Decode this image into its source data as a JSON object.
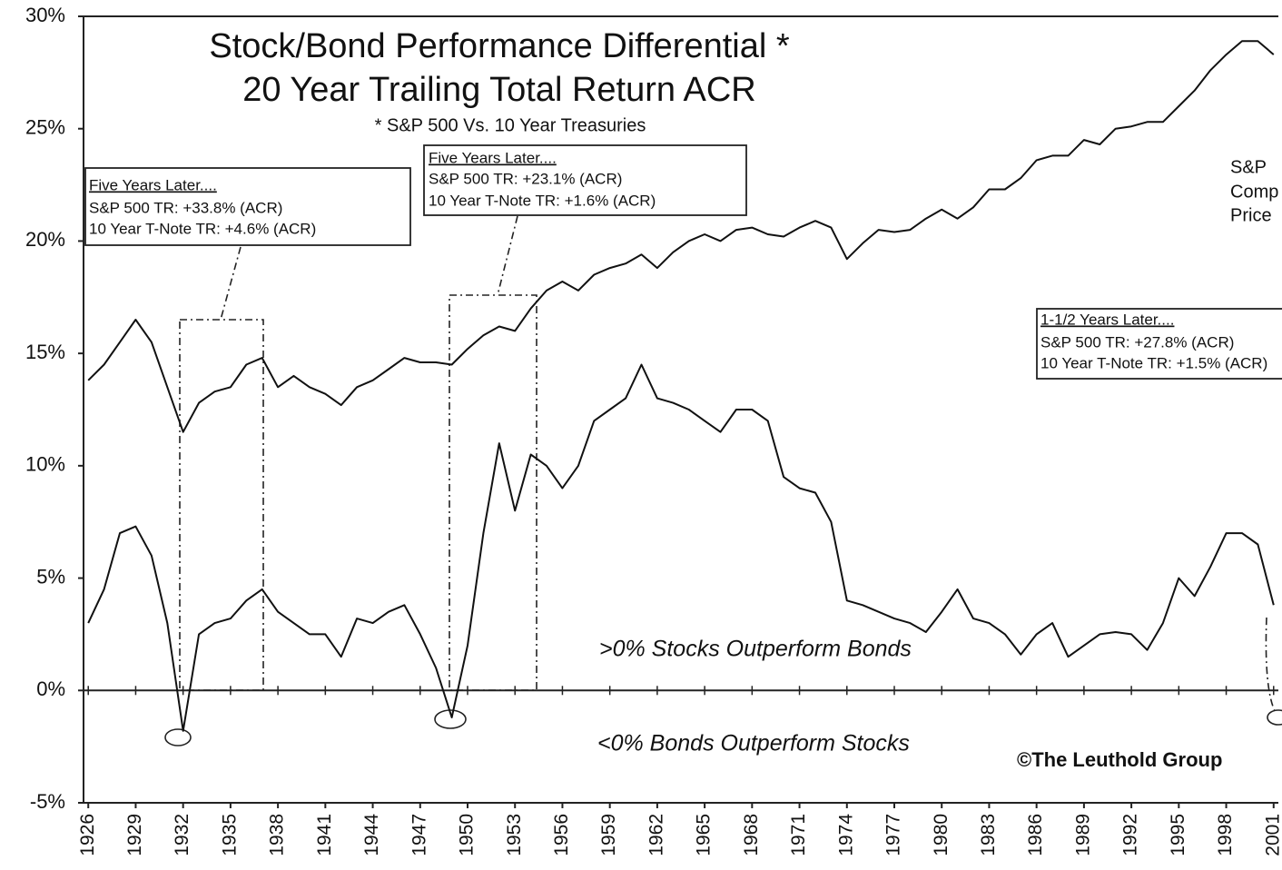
{
  "chart_data": {
    "type": "line",
    "title": "Stock/Bond Performance Differential *",
    "subtitle": "20 Year Trailing Total Return ACR",
    "note": "* S&P 500 Vs. 10 Year Treasuries",
    "x": [
      1926,
      1927,
      1928,
      1929,
      1930,
      1931,
      1932,
      1933,
      1934,
      1935,
      1936,
      1937,
      1938,
      1939,
      1940,
      1941,
      1942,
      1943,
      1944,
      1945,
      1946,
      1947,
      1948,
      1949,
      1950,
      1951,
      1952,
      1953,
      1954,
      1955,
      1956,
      1957,
      1958,
      1959,
      1960,
      1961,
      1962,
      1963,
      1964,
      1965,
      1966,
      1967,
      1968,
      1969,
      1970,
      1971,
      1972,
      1973,
      1974,
      1975,
      1976,
      1977,
      1978,
      1979,
      1980,
      1981,
      1982,
      1983,
      1984,
      1985,
      1986,
      1987,
      1988,
      1989,
      1990,
      1991,
      1992,
      1993,
      1994,
      1995,
      1996,
      1997,
      1998,
      1999,
      2000,
      2001
    ],
    "series": [
      {
        "name": "S&P Comp Price",
        "color": "#111111",
        "values": [
          13.8,
          14.5,
          15.5,
          16.5,
          15.5,
          13.5,
          11.5,
          12.8,
          13.3,
          13.5,
          14.5,
          14.8,
          13.5,
          14.0,
          13.5,
          13.2,
          12.7,
          13.5,
          13.8,
          14.3,
          14.8,
          14.6,
          14.6,
          14.5,
          15.2,
          15.8,
          16.2,
          16.0,
          17.0,
          17.8,
          18.2,
          17.8,
          18.5,
          18.8,
          19.0,
          19.4,
          18.8,
          19.5,
          20.0,
          20.3,
          20.0,
          20.5,
          20.6,
          20.3,
          20.2,
          20.6,
          20.9,
          20.6,
          19.2,
          19.9,
          20.5,
          20.4,
          20.5,
          21.0,
          21.4,
          21.0,
          21.5,
          22.3,
          22.3,
          22.8,
          23.6,
          23.8,
          23.8,
          24.5,
          24.3,
          25.0,
          25.1,
          25.3,
          25.3,
          26.0,
          26.7,
          27.6,
          28.3,
          28.9,
          28.9,
          28.3
        ]
      },
      {
        "name": "Stock/Bond Performance Differential",
        "color": "#111111",
        "values": [
          3.0,
          4.5,
          7.0,
          7.3,
          6.0,
          3.0,
          -1.8,
          2.5,
          3.0,
          3.2,
          4.0,
          4.5,
          3.5,
          3.0,
          2.5,
          2.5,
          1.5,
          3.2,
          3.0,
          3.5,
          3.8,
          2.5,
          1.0,
          -1.2,
          2.0,
          7.0,
          11.0,
          8.0,
          10.5,
          10.0,
          9.0,
          10.0,
          12.0,
          12.5,
          13.0,
          14.5,
          13.0,
          12.8,
          12.5,
          12.0,
          11.5,
          12.5,
          12.5,
          12.0,
          9.5,
          9.0,
          8.8,
          7.5,
          4.0,
          3.8,
          3.5,
          3.2,
          3.0,
          2.6,
          3.5,
          4.5,
          3.2,
          3.0,
          2.5,
          1.6,
          2.5,
          3.0,
          1.5,
          2.0,
          2.5,
          2.6,
          2.5,
          1.8,
          3.0,
          5.0,
          4.2,
          5.5,
          7.0,
          7.0,
          6.5,
          3.8
        ]
      }
    ],
    "xlim": [
      1925.7,
      2001.3
    ],
    "xticks": [
      1926,
      1929,
      1932,
      1935,
      1938,
      1941,
      1944,
      1947,
      1950,
      1953,
      1956,
      1959,
      1962,
      1965,
      1968,
      1971,
      1974,
      1977,
      1980,
      1983,
      1986,
      1989,
      1992,
      1995,
      1998,
      2001
    ],
    "ylim": [
      -5,
      30
    ],
    "yticks": [
      {
        "value": -5,
        "label": "-5%"
      },
      {
        "value": 0,
        "label": "0%"
      },
      {
        "value": 5,
        "label": "5%"
      },
      {
        "value": 10,
        "label": "10%"
      },
      {
        "value": 15,
        "label": "15%"
      },
      {
        "value": 20,
        "label": "20%"
      },
      {
        "value": 25,
        "label": "25%"
      },
      {
        "value": 30,
        "label": "30%"
      }
    ],
    "grid": false,
    "annotations": [
      {
        "lines": [
          "Five Years Later....",
          "S&P 500 TR: +33.8% (ACR)",
          "10 Year T-Note TR: +4.6% (ACR)"
        ]
      },
      {
        "lines": [
          "Five Years Later....",
          "S&P 500 TR: +23.1% (ACR)",
          "10 Year T-Note TR: +1.6% (ACR)"
        ]
      },
      {
        "lines": [
          "1-1/2 Years Later....",
          "S&P 500 TR: +27.8% (ACR)",
          "10 Year T-Note TR: +1.5% (ACR)"
        ]
      },
      {
        "lines": [
          "S&P",
          "Comp",
          "Price"
        ]
      }
    ],
    "positive_label": ">0% Stocks Outperform Bonds",
    "negative_label": "<0% Bonds Outperform Stocks",
    "credit": "©The Leuthold Group"
  }
}
